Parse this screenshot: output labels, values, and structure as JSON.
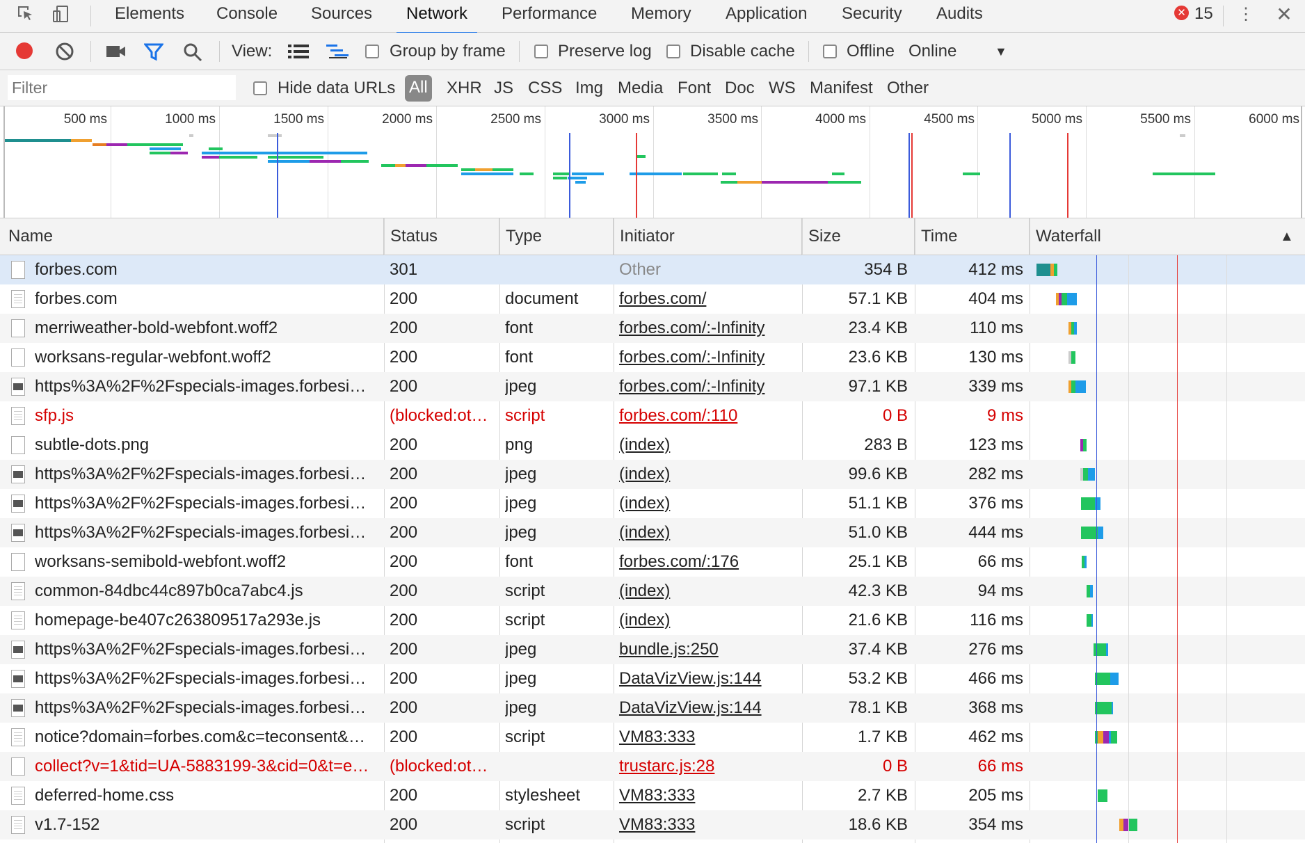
{
  "tabs": {
    "elements": "Elements",
    "console": "Console",
    "sources": "Sources",
    "network": "Network",
    "performance": "Performance",
    "memory": "Memory",
    "application": "Application",
    "security": "Security",
    "audits": "Audits",
    "active": "Network"
  },
  "errors": {
    "count": "15"
  },
  "toolbar": {
    "view_label": "View:",
    "group_by_frame": "Group by frame",
    "preserve_log": "Preserve log",
    "disable_cache": "Disable cache",
    "offline": "Offline",
    "throttling": "Online",
    "record_color": "#e53935",
    "filter_icon_color": "#1a73e8"
  },
  "filter": {
    "placeholder": "Filter",
    "hide_data_urls": "Hide data URLs",
    "types": [
      "All",
      "XHR",
      "JS",
      "CSS",
      "Img",
      "Media",
      "Font",
      "Doc",
      "WS",
      "Manifest",
      "Other"
    ],
    "active_type": "All"
  },
  "overview": {
    "ticks": [
      "500 ms",
      "1000 ms",
      "1500 ms",
      "2000 ms",
      "2500 ms",
      "3000 ms",
      "3500 ms",
      "4000 ms",
      "4500 ms",
      "5000 ms",
      "5500 ms",
      "6000 ms"
    ]
  },
  "columns": {
    "name": "Name",
    "status": "Status",
    "type": "Type",
    "initiator": "Initiator",
    "size": "Size",
    "time": "Time",
    "waterfall": "Waterfall",
    "sort_indicator": "▲"
  },
  "requests": [
    {
      "name": "forbes.com",
      "status": "301",
      "type": "",
      "initiator": "Other",
      "size": "354 B",
      "time": "412 ms",
      "icon": "file",
      "error": false,
      "link": false
    },
    {
      "name": "forbes.com",
      "status": "200",
      "type": "document",
      "initiator": "forbes.com/",
      "size": "57.1 KB",
      "time": "404 ms",
      "icon": "doc",
      "error": false,
      "link": true
    },
    {
      "name": "merriweather-bold-webfont.woff2",
      "status": "200",
      "type": "font",
      "initiator": "forbes.com/:-Infinity",
      "size": "23.4 KB",
      "time": "110 ms",
      "icon": "file",
      "error": false,
      "link": true
    },
    {
      "name": "worksans-regular-webfont.woff2",
      "status": "200",
      "type": "font",
      "initiator": "forbes.com/:-Infinity",
      "size": "23.6 KB",
      "time": "130 ms",
      "icon": "file",
      "error": false,
      "link": true
    },
    {
      "name": "https%3A%2F%2Fspecials-images.forbesi…",
      "status": "200",
      "type": "jpeg",
      "initiator": "forbes.com/:-Infinity",
      "size": "97.1 KB",
      "time": "339 ms",
      "icon": "img",
      "error": false,
      "link": true
    },
    {
      "name": "sfp.js",
      "status": "(blocked:ot…",
      "type": "script",
      "initiator": "forbes.com/:110",
      "size": "0 B",
      "time": "9 ms",
      "icon": "doc",
      "error": true,
      "link": true
    },
    {
      "name": "subtle-dots.png",
      "status": "200",
      "type": "png",
      "initiator": "(index)",
      "size": "283 B",
      "time": "123 ms",
      "icon": "file",
      "error": false,
      "link": true
    },
    {
      "name": "https%3A%2F%2Fspecials-images.forbesi…",
      "status": "200",
      "type": "jpeg",
      "initiator": "(index)",
      "size": "99.6 KB",
      "time": "282 ms",
      "icon": "img",
      "error": false,
      "link": true
    },
    {
      "name": "https%3A%2F%2Fspecials-images.forbesi…",
      "status": "200",
      "type": "jpeg",
      "initiator": "(index)",
      "size": "51.1 KB",
      "time": "376 ms",
      "icon": "img",
      "error": false,
      "link": true
    },
    {
      "name": "https%3A%2F%2Fspecials-images.forbesi…",
      "status": "200",
      "type": "jpeg",
      "initiator": "(index)",
      "size": "51.0 KB",
      "time": "444 ms",
      "icon": "img",
      "error": false,
      "link": true
    },
    {
      "name": "worksans-semibold-webfont.woff2",
      "status": "200",
      "type": "font",
      "initiator": "forbes.com/:176",
      "size": "25.1 KB",
      "time": "66 ms",
      "icon": "file",
      "error": false,
      "link": true
    },
    {
      "name": "common-84dbc44c897b0ca7abc4.js",
      "status": "200",
      "type": "script",
      "initiator": "(index)",
      "size": "42.3 KB",
      "time": "94 ms",
      "icon": "doc",
      "error": false,
      "link": true
    },
    {
      "name": "homepage-be407c263809517a293e.js",
      "status": "200",
      "type": "script",
      "initiator": "(index)",
      "size": "21.6 KB",
      "time": "116 ms",
      "icon": "doc",
      "error": false,
      "link": true
    },
    {
      "name": "https%3A%2F%2Fspecials-images.forbesi…",
      "status": "200",
      "type": "jpeg",
      "initiator": "bundle.js:250",
      "size": "37.4 KB",
      "time": "276 ms",
      "icon": "img",
      "error": false,
      "link": true
    },
    {
      "name": "https%3A%2F%2Fspecials-images.forbesi…",
      "status": "200",
      "type": "jpeg",
      "initiator": "DataVizView.js:144",
      "size": "53.2 KB",
      "time": "466 ms",
      "icon": "img",
      "error": false,
      "link": true
    },
    {
      "name": "https%3A%2F%2Fspecials-images.forbesi…",
      "status": "200",
      "type": "jpeg",
      "initiator": "DataVizView.js:144",
      "size": "78.1 KB",
      "time": "368 ms",
      "icon": "img",
      "error": false,
      "link": true
    },
    {
      "name": "notice?domain=forbes.com&c=teconsent&…",
      "status": "200",
      "type": "script",
      "initiator": "VM83:333",
      "size": "1.7 KB",
      "time": "462 ms",
      "icon": "doc",
      "error": false,
      "link": true
    },
    {
      "name": "collect?v=1&tid=UA-5883199-3&cid=0&t=e…",
      "status": "(blocked:ot…",
      "type": "",
      "initiator": "trustarc.js:28",
      "size": "0 B",
      "time": "66 ms",
      "icon": "file",
      "error": true,
      "link": true
    },
    {
      "name": "deferred-home.css",
      "status": "200",
      "type": "stylesheet",
      "initiator": "VM83:333",
      "size": "2.7 KB",
      "time": "205 ms",
      "icon": "doc",
      "error": false,
      "link": true
    },
    {
      "name": "v1.7-152",
      "status": "200",
      "type": "script",
      "initiator": "VM83:333",
      "size": "18.6 KB",
      "time": "354 ms",
      "icon": "doc",
      "error": false,
      "link": true
    }
  ],
  "waterfall_colors": {
    "connect": "#f0a030",
    "ssl": "#9c27b0",
    "waiting": "#22c55e",
    "download": "#1e9ce8",
    "redirect": "#1f8f8f",
    "dom_line": "#3b5bdb",
    "load_line": "#e53935"
  }
}
